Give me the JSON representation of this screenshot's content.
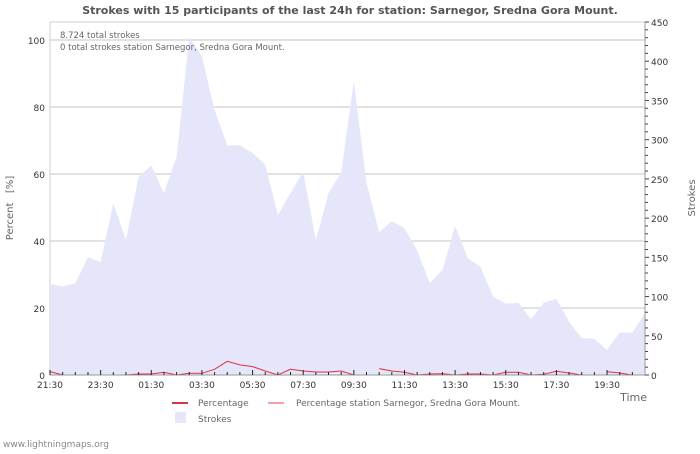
{
  "chart_data": {
    "type": "area",
    "title": "Strokes with 15 participants of the last 24h for station: Sarnegor, Sredna Gora Mount.",
    "xlabel": "Time",
    "ylabel_left": "Percent   [%]",
    "ylabel_right": "Strokes",
    "ylim_left": [
      0,
      100
    ],
    "ylim_right": [
      0,
      450
    ],
    "left_ticks": [
      "0",
      "20",
      "40",
      "60",
      "80",
      "100"
    ],
    "right_ticks": [
      "0",
      "50",
      "100",
      "150",
      "200",
      "250",
      "300",
      "350",
      "400",
      "450"
    ],
    "x_tick_labels": [
      "21:30",
      "23:30",
      "01:30",
      "03:30",
      "05:30",
      "07:30",
      "09:30",
      "11:30",
      "13:30",
      "15:30",
      "17:30",
      "19:30"
    ],
    "x_step_minutes": 30,
    "grid": true,
    "annotations": [
      "8.724 total strokes",
      "0 total strokes station Sarnegor, Sredna Gora Mount."
    ],
    "series": [
      {
        "name": "Strokes",
        "axis": "right",
        "color": "#e6e6fa",
        "values": [
          116,
          113,
          117,
          150,
          144,
          219,
          172,
          253,
          267,
          232,
          278,
          431,
          406,
          338,
          293,
          293,
          283,
          268,
          204,
          232,
          259,
          172,
          232,
          258,
          374,
          245,
          182,
          196,
          187,
          159,
          117,
          134,
          190,
          149,
          138,
          100,
          91,
          92,
          71,
          92,
          97,
          68,
          47,
          46,
          32,
          54,
          54,
          79
        ]
      },
      {
        "name": "Percentage",
        "axis": "left",
        "color": "#dd3344",
        "values": [
          1.0,
          0,
          null,
          null,
          null,
          0,
          0,
          0.3,
          0.3,
          0.8,
          0,
          0.5,
          0.5,
          1.7,
          4.1,
          3.0,
          2.5,
          1.2,
          0,
          1.7,
          1.2,
          0.9,
          0.9,
          1.2,
          0,
          null,
          1.9,
          1.2,
          0.8,
          0,
          0.3,
          0.4,
          0,
          0.3,
          0.3,
          0,
          0.8,
          0.8,
          0,
          0.2,
          1.1,
          0.6,
          0,
          null,
          1.0,
          0.6,
          0,
          1.9
        ]
      },
      {
        "name": "Percentage station Sarnegor, Sredna Gora Mount.",
        "axis": "left",
        "color": "#f4a0a0",
        "values": []
      }
    ],
    "legend_placement": "bottom"
  },
  "footer": "www.lightningmaps.org"
}
